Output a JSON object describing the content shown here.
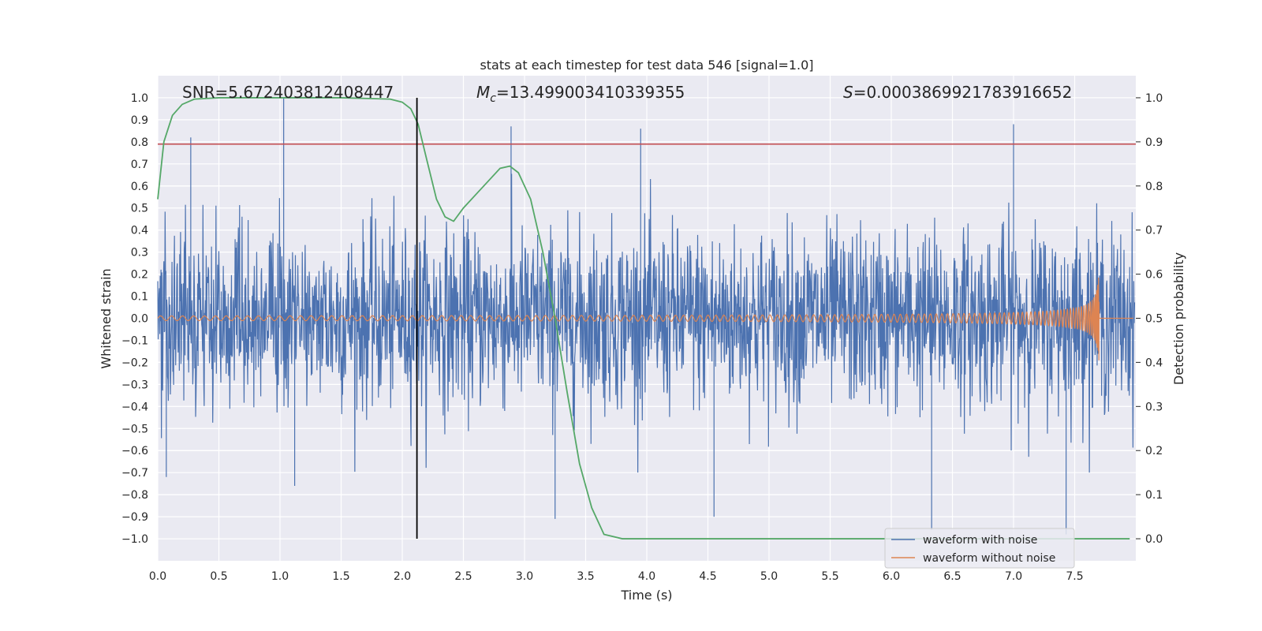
{
  "chart_data": {
    "type": "line",
    "title": "stats at each timestep for test data 546 [signal=1.0]",
    "xlabel": "Time (s)",
    "ylabel": "Whitened strain",
    "ylabel_right": "Detection probability",
    "xlim": [
      0.0,
      8.0
    ],
    "ylim": [
      -1.1,
      1.1
    ],
    "ylim_right": [
      -0.05,
      1.05
    ],
    "grid": true,
    "legend_position": "lower-right",
    "xticks": [
      "0.0",
      "0.5",
      "1.0",
      "1.5",
      "2.0",
      "2.5",
      "3.0",
      "3.5",
      "4.0",
      "4.5",
      "5.0",
      "5.5",
      "6.0",
      "6.5",
      "7.0",
      "7.5"
    ],
    "yticks_left": [
      "1.0",
      "0.9",
      "0.8",
      "0.7",
      "0.6",
      "0.5",
      "0.4",
      "0.3",
      "0.2",
      "0.1",
      "0.0",
      "−0.1",
      "−0.2",
      "−0.3",
      "−0.4",
      "−0.5",
      "−0.6",
      "−0.7",
      "−0.8",
      "−0.9",
      "−1.0"
    ],
    "yticks_right": [
      "1.0",
      "0.9",
      "0.8",
      "0.7",
      "0.6",
      "0.5",
      "0.4",
      "0.3",
      "0.2",
      "0.1",
      "0.0"
    ],
    "annotations": {
      "snr": "SNR=5.672403812408447",
      "mc_symbol": "M",
      "mc_sub": "c",
      "mc_value": "=13.499003410339355",
      "s_symbol": "S",
      "s_value": "=0.0003869921783916652"
    },
    "legend": [
      {
        "label": "waveform with noise",
        "color": "#4c72b0"
      },
      {
        "label": "waveform without noise",
        "color": "#dd8452"
      }
    ],
    "series": [
      {
        "name": "waveform with noise",
        "axis": "left",
        "color": "#4c72b0",
        "description": "noisy whitened strain, typical amplitude ±0.45 with spikes to ±0.95",
        "peaks": [
          {
            "t": 1.03,
            "v": 1.0
          },
          {
            "t": 7.0,
            "v": 0.88
          },
          {
            "t": 3.95,
            "v": 0.86
          },
          {
            "t": 2.89,
            "v": 0.87
          },
          {
            "t": 0.27,
            "v": 0.82
          },
          {
            "t": 6.33,
            "v": -0.96
          },
          {
            "t": 7.43,
            "v": -0.98
          },
          {
            "t": 4.55,
            "v": -0.9
          },
          {
            "t": 3.25,
            "v": -0.91
          },
          {
            "t": 1.12,
            "v": -0.76
          },
          {
            "t": 0.07,
            "v": -0.72
          }
        ]
      },
      {
        "name": "waveform without noise",
        "axis": "left",
        "color": "#dd8452",
        "description": "chirp signal growing to peak near t=7.7 s",
        "merger_time": 7.7,
        "peak_amplitude": 0.25
      },
      {
        "name": "detection probability",
        "axis": "right",
        "color": "#55a868",
        "x": [
          0.0,
          0.05,
          0.12,
          0.2,
          0.3,
          0.5,
          1.0,
          1.5,
          1.9,
          2.0,
          2.07,
          2.13,
          2.2,
          2.28,
          2.35,
          2.42,
          2.5,
          2.6,
          2.7,
          2.8,
          2.88,
          2.95,
          3.05,
          3.15,
          3.25,
          3.35,
          3.45,
          3.55,
          3.65,
          3.8,
          4.0,
          5.0,
          6.0,
          7.0,
          7.95
        ],
        "y": [
          0.77,
          0.9,
          0.96,
          0.985,
          0.997,
          1.0,
          1.0,
          1.0,
          0.997,
          0.99,
          0.975,
          0.94,
          0.86,
          0.77,
          0.73,
          0.72,
          0.75,
          0.78,
          0.81,
          0.84,
          0.845,
          0.83,
          0.77,
          0.65,
          0.5,
          0.33,
          0.17,
          0.07,
          0.01,
          0.0,
          0.0,
          0.0,
          0.0,
          0.0,
          0.0
        ]
      }
    ],
    "threshold_line": {
      "value_left": 0.79,
      "color": "#c44e52"
    },
    "vertical_marker": {
      "t": 2.12,
      "color": "#000000"
    }
  }
}
